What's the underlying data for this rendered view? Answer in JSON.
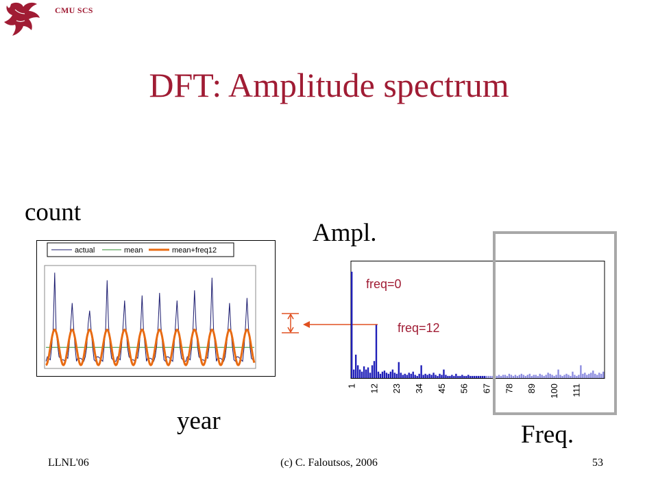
{
  "header": {
    "org": "CMU SCS"
  },
  "title": "DFT: Amplitude spectrum",
  "labels": {
    "count": "count",
    "ampl": "Ampl.",
    "year": "year",
    "freq": "Freq."
  },
  "footer": {
    "left": "LLNL'06",
    "center": "(c) C. Faloutsos, 2006",
    "page": "53"
  },
  "colors": {
    "title": "#a01c34",
    "actual": "#1a1a6e",
    "mean": "#2e8b2e",
    "fit": "#e86b12",
    "bars_low": "#1f1fb8",
    "bars_high": "#8c8ce0",
    "highlight_box": "#a8a8a8",
    "annotation": "#e05020"
  },
  "chart_data": [
    {
      "type": "line",
      "title": "",
      "xlabel": "",
      "ylabel": "",
      "legend": {
        "placement": "top",
        "entries": [
          "actual",
          "mean",
          "mean+freq12"
        ]
      },
      "period": 12,
      "n_points": 144,
      "series": [
        {
          "name": "actual",
          "peaks": [
            3.5,
            2.3,
            2.0,
            3.2,
            2.4,
            2.6,
            2.7,
            2.4,
            2.8,
            3.3,
            2.3,
            2.5
          ]
        },
        {
          "name": "mean",
          "value": 0.55
        },
        {
          "name": "mean+freq12",
          "amplitude": 0.7
        }
      ]
    },
    {
      "type": "bar",
      "title": "",
      "xlabel": "Freq.",
      "ylabel": "Ampl.",
      "tick_labels": [
        "1",
        "12",
        "23",
        "34",
        "45",
        "56",
        "67",
        "78",
        "89",
        "100",
        "111"
      ],
      "annotations": [
        "freq=0",
        "freq=12"
      ],
      "highlighted_range": [
        67,
        121
      ],
      "values": [
        100,
        8,
        22,
        12,
        8,
        6,
        11,
        8,
        10,
        5,
        12,
        16,
        50,
        6,
        4,
        6,
        7,
        5,
        4,
        6,
        8,
        5,
        4,
        15,
        5,
        3,
        4,
        3,
        5,
        4,
        6,
        3,
        2,
        4,
        12,
        3,
        4,
        3,
        4,
        3,
        5,
        3,
        2,
        4,
        3,
        8,
        3,
        2,
        2,
        3,
        2,
        4,
        2,
        2,
        3,
        2,
        2,
        3,
        2,
        2,
        2,
        2,
        2,
        2,
        2,
        2,
        2,
        2,
        2,
        2,
        3,
        2,
        3,
        2,
        3,
        3,
        2,
        4,
        3,
        2,
        3,
        2,
        3,
        4,
        3,
        2,
        3,
        4,
        2,
        3,
        3,
        2,
        4,
        3,
        2,
        3,
        5,
        4,
        3,
        2,
        3,
        8,
        3,
        2,
        3,
        4,
        3,
        2,
        6,
        3,
        2,
        3,
        12,
        4,
        5,
        3,
        4,
        5,
        7,
        4,
        3,
        5,
        4,
        6
      ]
    }
  ]
}
